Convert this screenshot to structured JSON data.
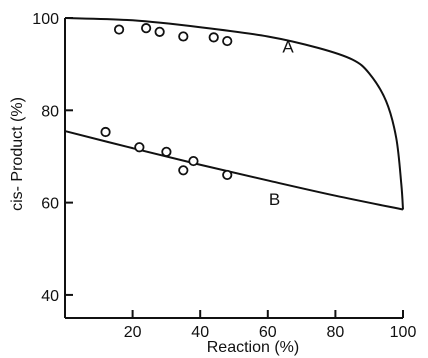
{
  "chart_data": {
    "type": "scatter",
    "title": "",
    "xlabel": "Reaction (%)",
    "ylabel": "cis- Product (%)",
    "xlim": [
      0,
      100
    ],
    "ylim": [
      35,
      100
    ],
    "x_ticks": [
      "20",
      "40",
      "60",
      "80",
      "100"
    ],
    "y_ticks": [
      "40",
      "60",
      "80",
      "100"
    ],
    "x_tick_values": [
      20,
      40,
      60,
      80,
      100
    ],
    "y_tick_values": [
      40,
      60,
      80,
      100
    ],
    "grid": false,
    "series": [
      {
        "name": "A",
        "points": [
          [
            16,
            97.5
          ],
          [
            24,
            97.8
          ],
          [
            28,
            97.0
          ],
          [
            35,
            96.0
          ],
          [
            44,
            95.8
          ],
          [
            48,
            95.0
          ]
        ],
        "curve": [
          [
            0,
            100
          ],
          [
            20,
            99.5
          ],
          [
            40,
            98
          ],
          [
            60,
            96
          ],
          [
            75,
            93.5
          ],
          [
            85,
            91
          ],
          [
            90,
            88
          ],
          [
            95,
            82
          ],
          [
            98,
            74
          ],
          [
            99.5,
            64
          ],
          [
            100,
            58.5
          ]
        ]
      },
      {
        "name": "B",
        "points": [
          [
            12,
            75.3
          ],
          [
            22,
            72.0
          ],
          [
            30,
            71.0
          ],
          [
            35,
            67.0
          ],
          [
            38,
            69.0
          ],
          [
            48,
            66.0
          ]
        ],
        "curve": [
          [
            0,
            75.5
          ],
          [
            20,
            71.8
          ],
          [
            40,
            68.2
          ],
          [
            60,
            64.8
          ],
          [
            80,
            61.5
          ],
          [
            100,
            58.5
          ]
        ]
      }
    ]
  }
}
